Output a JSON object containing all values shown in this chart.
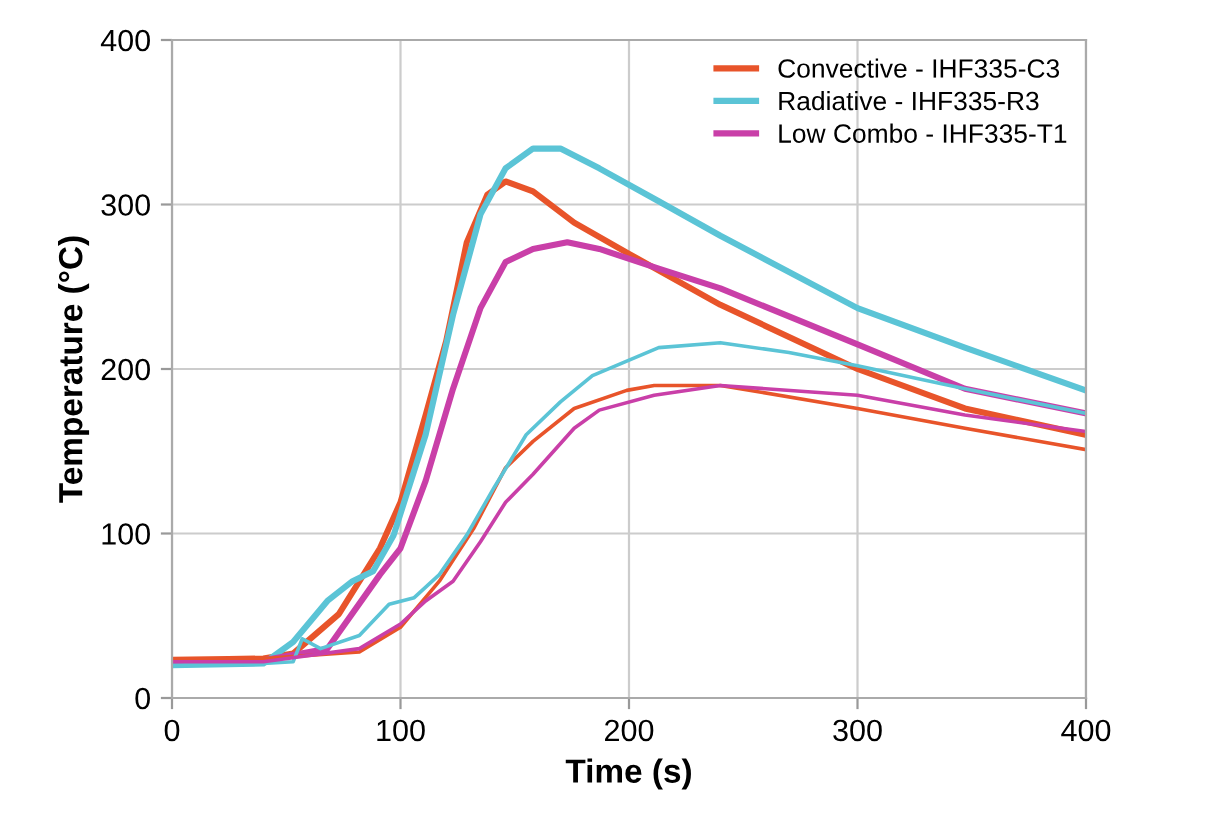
{
  "chart_data": {
    "type": "line",
    "xlabel": "Time (s)",
    "ylabel": "Temperature (°C)",
    "xlim": [
      0,
      400
    ],
    "ylim": [
      0,
      400
    ],
    "xticks": [
      0,
      100,
      200,
      300,
      400
    ],
    "yticks": [
      0,
      100,
      200,
      300,
      400
    ],
    "grid": true,
    "legend": "top right",
    "marker": "none",
    "line_style": "solid",
    "series": [
      {
        "name": "Convective - IHF335-C3",
        "color": "#e8542a",
        "x": [
          0,
          40,
          53,
          73,
          91,
          100,
          111,
          120,
          129,
          138,
          146,
          158,
          176,
          200,
          240,
          300,
          347,
          400
        ],
        "values": [
          23,
          24,
          27,
          51,
          91,
          119,
          172,
          217,
          277,
          306,
          314,
          308,
          289,
          270,
          239,
          200,
          176,
          160
        ]
      },
      {
        "name": "Radiative - IHF335-R3",
        "color": "#5bc4d6",
        "x": [
          0,
          40,
          53,
          68,
          79,
          88,
          97,
          111,
          123,
          135,
          146,
          158,
          170,
          187,
          213,
          240,
          300,
          347,
          400
        ],
        "values": [
          20,
          21,
          34,
          59,
          71,
          77,
          99,
          160,
          233,
          294,
          322,
          334,
          334,
          322,
          302,
          281,
          237,
          213,
          187
        ]
      },
      {
        "name": "Low Combo - IHF335-T1",
        "color": "#c93fa8",
        "x": [
          0,
          40,
          68,
          91,
          100,
          111,
          123,
          135,
          146,
          158,
          173,
          187,
          213,
          240,
          300,
          347,
          400
        ],
        "values": [
          22,
          23,
          30,
          75,
          91,
          132,
          188,
          237,
          265,
          273,
          277,
          273,
          261,
          249,
          215,
          188,
          173
        ]
      },
      {
        "color": "#e8542a",
        "x": [
          0,
          40,
          82,
          100,
          117,
          132,
          146,
          158,
          176,
          199,
          211,
          240,
          300,
          347,
          400
        ],
        "values": [
          24,
          24,
          28,
          43,
          71,
          103,
          140,
          156,
          176,
          187,
          190,
          190,
          176,
          164,
          151
        ]
      },
      {
        "color": "#5bc4d6",
        "x": [
          0,
          40,
          53,
          57,
          65,
          82,
          95,
          106,
          117,
          129,
          141,
          155,
          170,
          184,
          213,
          240,
          270,
          300,
          347,
          400
        ],
        "values": [
          20,
          21,
          22,
          36,
          30,
          38,
          57,
          61,
          75,
          99,
          128,
          160,
          180,
          196,
          213,
          216,
          210,
          202,
          188,
          173
        ]
      },
      {
        "color": "#c93fa8",
        "x": [
          0,
          40,
          82,
          100,
          111,
          123,
          135,
          146,
          158,
          176,
          187,
          211,
          240,
          300,
          347,
          400
        ],
        "values": [
          22,
          22,
          30,
          45,
          59,
          71,
          95,
          119,
          136,
          164,
          175,
          184,
          190,
          184,
          172,
          162
        ]
      }
    ]
  }
}
